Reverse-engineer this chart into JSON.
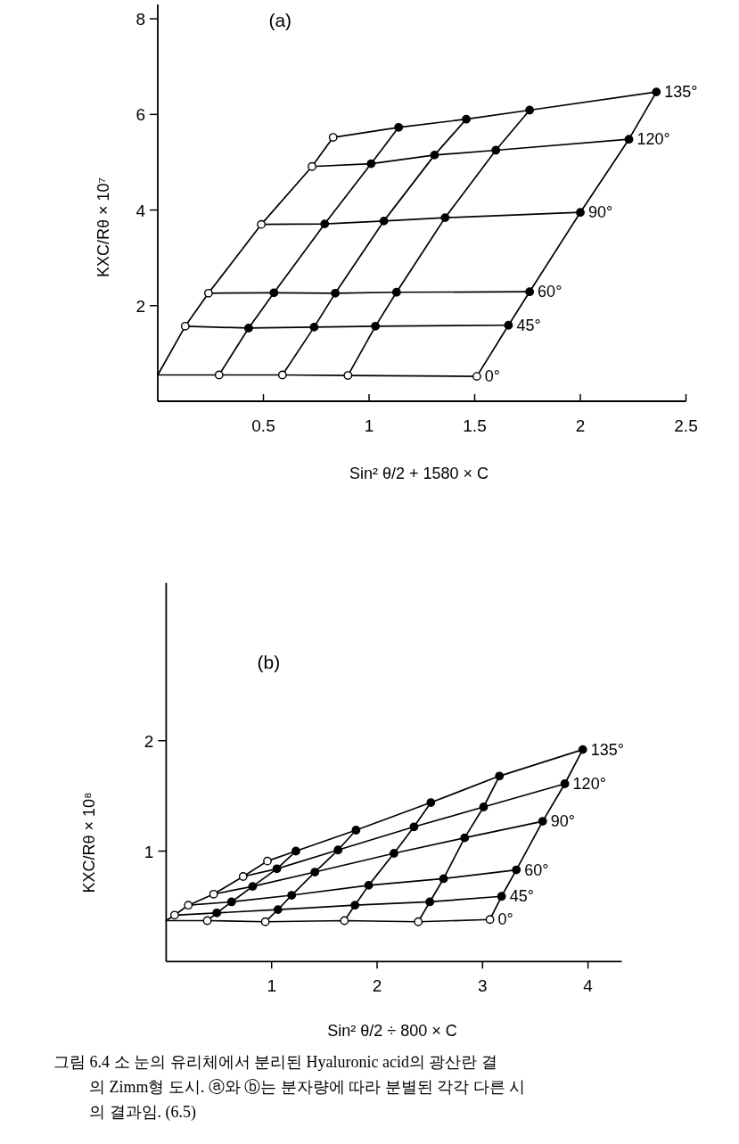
{
  "chart_data": [
    {
      "type": "line",
      "title": "(a)",
      "xlabel": "Sin² θ/2 + 1580 × C",
      "ylabel": "KXC/Rθ × 10⁷",
      "xlim": [
        0,
        2.5
      ],
      "ylim": [
        0,
        8.3
      ],
      "xticks": [
        0.5,
        1,
        1.5,
        2,
        2.5
      ],
      "yticks": [
        2,
        4,
        6,
        8
      ],
      "series": [
        {
          "color": "#000000",
          "marker": "circle",
          "x": [
            0,
            0.13,
            0.24,
            0.49,
            0.73,
            0.83
          ],
          "values": [
            0.55,
            1.57,
            2.26,
            3.7,
            4.91,
            5.52
          ],
          "colors": [
            null,
            "#ffffff",
            "#ffffff",
            "#ffffff",
            "#ffffff",
            "#ffffff"
          ]
        },
        {
          "color": "#000000",
          "marker": "circle",
          "x": [
            0.29,
            0.43,
            0.55,
            0.79,
            1.01,
            1.14
          ],
          "values": [
            0.55,
            1.53,
            2.27,
            3.71,
            4.97,
            5.73
          ],
          "colors": [
            "#ffffff",
            "#000000",
            "#000000",
            "#000000",
            "#000000",
            "#000000"
          ]
        },
        {
          "color": "#000000",
          "marker": "circle",
          "x": [
            0.59,
            0.74,
            0.84,
            1.07,
            1.31,
            1.46
          ],
          "values": [
            0.55,
            1.55,
            2.26,
            3.77,
            5.15,
            5.9
          ],
          "colors": [
            "#ffffff",
            "#000000",
            "#000000",
            "#000000",
            "#000000",
            "#000000"
          ]
        },
        {
          "color": "#000000",
          "marker": "circle",
          "x": [
            0.9,
            1.03,
            1.13,
            1.36,
            1.6,
            1.76
          ],
          "values": [
            0.54,
            1.57,
            2.28,
            3.84,
            5.25,
            6.09
          ],
          "colors": [
            "#ffffff",
            "#000000",
            "#000000",
            "#000000",
            "#000000",
            "#000000"
          ]
        },
        {
          "color": "#000000",
          "marker": "circle",
          "x": [
            1.51,
            1.66,
            1.76,
            2.0,
            2.23,
            2.36
          ],
          "values": [
            0.52,
            1.59,
            2.29,
            3.95,
            5.48,
            6.47
          ],
          "colors": [
            "#ffffff",
            "#000000",
            "#000000",
            "#000000",
            "#000000",
            "#000000"
          ]
        },
        {
          "name": "135°",
          "color": "#000000",
          "x": [
            0.83,
            1.14,
            1.46,
            1.76,
            2.36
          ],
          "values": [
            5.52,
            5.73,
            5.9,
            6.09,
            6.47
          ]
        },
        {
          "name": "120°",
          "color": "#000000",
          "x": [
            0.73,
            1.01,
            1.31,
            1.6,
            2.23
          ],
          "values": [
            4.91,
            4.97,
            5.15,
            5.25,
            5.48
          ]
        },
        {
          "name": "90°",
          "color": "#000000",
          "x": [
            0.49,
            0.79,
            1.07,
            1.36,
            2.0
          ],
          "values": [
            3.7,
            3.71,
            3.77,
            3.84,
            3.95
          ]
        },
        {
          "name": "60°",
          "color": "#000000",
          "x": [
            0.24,
            0.55,
            0.84,
            1.13,
            1.76
          ],
          "values": [
            2.26,
            2.27,
            2.26,
            2.28,
            2.29
          ]
        },
        {
          "name": "45°",
          "color": "#000000",
          "x": [
            0.13,
            0.43,
            0.74,
            1.03,
            1.66
          ],
          "values": [
            1.57,
            1.53,
            1.55,
            1.57,
            1.59
          ]
        },
        {
          "name": "0°",
          "color": "#000000",
          "x": [
            0,
            0.29,
            0.59,
            0.9,
            1.51
          ],
          "values": [
            0.55,
            0.55,
            0.55,
            0.54,
            0.52
          ]
        }
      ]
    },
    {
      "type": "line",
      "title": "(b)",
      "xlabel": "Sin² θ/2 ÷ 800 × C",
      "ylabel": "KXC/Rθ × 10⁸",
      "xlim": [
        0,
        4.32
      ],
      "ylim": [
        0,
        3.43
      ],
      "xticks": [
        1,
        2,
        3,
        4
      ],
      "yticks": [
        1,
        2
      ],
      "annotations": [
        "그림 6.4 소 눈의 유리체에서 분리된 Hyaluronic acid의 광산란 결\n의 Zimm형 도시. ⓐ와 ⓑ는 분자량에 따라 분별된 각각 다른 시\n의 결과임. (6.5)"
      ],
      "series": [
        {
          "color": "#000000",
          "marker": "circle",
          "x": [
            0,
            0.08,
            0.21,
            0.45,
            0.73,
            0.96
          ],
          "values": [
            0.37,
            0.42,
            0.51,
            0.61,
            0.77,
            0.91
          ],
          "colors": [
            null,
            "#ffffff",
            "#ffffff",
            "#ffffff",
            "#ffffff",
            "#ffffff"
          ]
        },
        {
          "color": "#000000",
          "marker": "circle",
          "x": [
            0.39,
            0.48,
            0.62,
            0.82,
            1.05,
            1.23
          ],
          "values": [
            0.37,
            0.44,
            0.54,
            0.68,
            0.84,
            1.0
          ],
          "colors": [
            "#ffffff",
            "#000000",
            "#000000",
            "#000000",
            "#000000",
            "#000000"
          ]
        },
        {
          "color": "#000000",
          "marker": "circle",
          "x": [
            0.94,
            1.06,
            1.19,
            1.41,
            1.63,
            1.8
          ],
          "values": [
            0.36,
            0.47,
            0.6,
            0.81,
            1.01,
            1.19
          ],
          "colors": [
            "#ffffff",
            "#000000",
            "#000000",
            "#000000",
            "#000000",
            "#000000"
          ]
        },
        {
          "color": "#000000",
          "marker": "circle",
          "x": [
            1.69,
            1.79,
            1.92,
            2.16,
            2.35,
            2.51
          ],
          "values": [
            0.37,
            0.51,
            0.69,
            0.98,
            1.22,
            1.44
          ],
          "colors": [
            "#ffffff",
            "#000000",
            "#000000",
            "#000000",
            "#000000",
            "#000000"
          ]
        },
        {
          "color": "#000000",
          "marker": "circle",
          "x": [
            2.39,
            2.5,
            2.63,
            2.83,
            3.01,
            3.16
          ],
          "values": [
            0.36,
            0.54,
            0.75,
            1.12,
            1.4,
            1.68
          ],
          "colors": [
            "#ffffff",
            "#000000",
            "#000000",
            "#000000",
            "#000000",
            "#000000"
          ]
        },
        {
          "color": "#000000",
          "marker": "circle",
          "x": [
            3.07,
            3.18,
            3.32,
            3.57,
            3.78,
            3.95
          ],
          "values": [
            0.38,
            0.59,
            0.83,
            1.27,
            1.61,
            1.92
          ],
          "colors": [
            "#ffffff",
            "#000000",
            "#000000",
            "#000000",
            "#000000",
            "#000000"
          ]
        },
        {
          "name": "135°",
          "color": "#000000",
          "x": [
            0.96,
            1.23,
            1.8,
            2.51,
            3.16,
            3.95
          ],
          "values": [
            0.91,
            1.0,
            1.19,
            1.44,
            1.68,
            1.92
          ]
        },
        {
          "name": "120°",
          "color": "#000000",
          "x": [
            0.73,
            1.05,
            1.63,
            2.35,
            3.01,
            3.78
          ],
          "values": [
            0.77,
            0.84,
            1.01,
            1.22,
            1.4,
            1.61
          ]
        },
        {
          "name": "90°",
          "color": "#000000",
          "x": [
            0.45,
            0.82,
            1.41,
            2.16,
            2.83,
            3.57
          ],
          "values": [
            0.61,
            0.68,
            0.81,
            0.98,
            1.12,
            1.27
          ]
        },
        {
          "name": "60°",
          "color": "#000000",
          "x": [
            0.21,
            0.62,
            1.19,
            1.92,
            2.63,
            3.32
          ],
          "values": [
            0.51,
            0.54,
            0.6,
            0.69,
            0.75,
            0.83
          ]
        },
        {
          "name": "45°",
          "color": "#000000",
          "x": [
            0.08,
            0.48,
            1.06,
            1.79,
            2.5,
            3.18
          ],
          "values": [
            0.42,
            0.44,
            0.47,
            0.51,
            0.54,
            0.59
          ]
        },
        {
          "name": "0°",
          "color": "#000000",
          "x": [
            0,
            0.39,
            0.94,
            1.69,
            2.39,
            3.07
          ],
          "values": [
            0.37,
            0.37,
            0.36,
            0.37,
            0.36,
            0.38
          ]
        }
      ]
    }
  ]
}
